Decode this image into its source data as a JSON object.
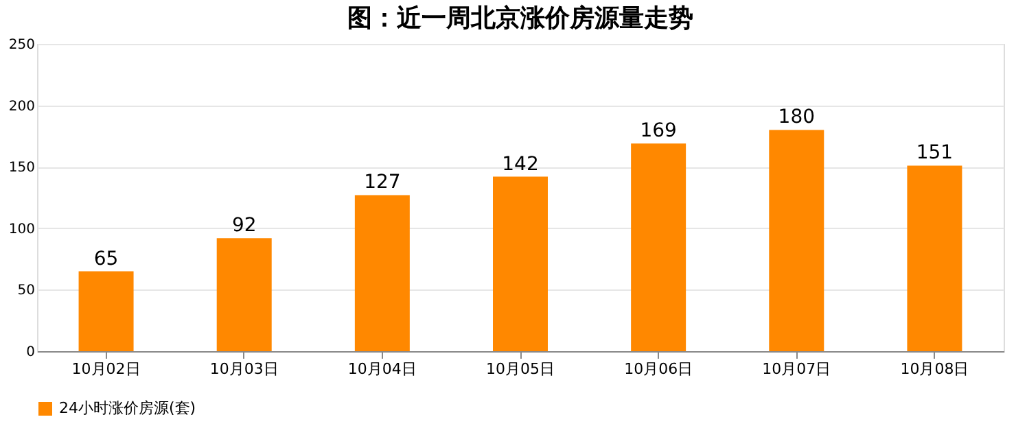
{
  "chart_data": {
    "type": "bar",
    "title": "图：近一周北京涨价房源量走势",
    "categories": [
      "10月02日",
      "10月03日",
      "10月04日",
      "10月05日",
      "10月06日",
      "10月07日",
      "10月08日"
    ],
    "series": [
      {
        "name": "24小时涨价房源(套)",
        "color": "#ff8800",
        "values": [
          65,
          92,
          127,
          142,
          169,
          180,
          151
        ]
      }
    ],
    "ylim": [
      0,
      250
    ],
    "yticks": [
      0,
      50,
      100,
      150,
      200,
      250
    ],
    "grid": "y",
    "legend": "bottom",
    "data_labels": true
  }
}
